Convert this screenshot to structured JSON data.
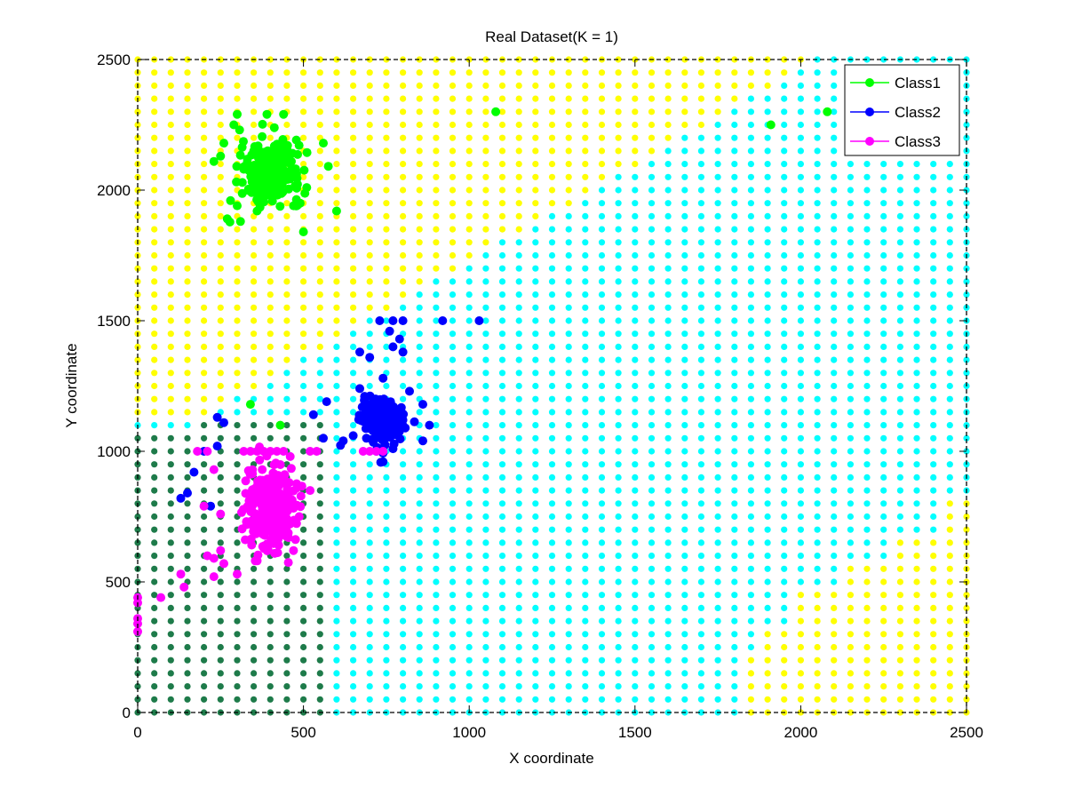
{
  "chart_data": {
    "type": "scatter",
    "title": "Real Dataset(K = 1)",
    "xlabel": "X coordinate",
    "ylabel": "Y coordinate",
    "xlim": [
      0,
      2500
    ],
    "ylim": [
      0,
      2500
    ],
    "xticks": [
      0,
      500,
      1000,
      1500,
      2000,
      2500
    ],
    "yticks": [
      0,
      500,
      1000,
      1500,
      2000,
      2500
    ],
    "grid": false,
    "legend_position": "top-right",
    "background_grid": {
      "step": 50,
      "colors": {
        "class1_region": "#ffff00",
        "class2_region": "#00ffff",
        "class3_region": "#1e7b4a"
      }
    },
    "series": [
      {
        "name": "Class1",
        "color": "#00ff00",
        "cluster": {
          "center": [
            400,
            2070
          ],
          "spread": [
            45,
            55
          ],
          "count": 260
        },
        "points": [
          [
            300,
            2290
          ],
          [
            390,
            2290
          ],
          [
            440,
            2290
          ],
          [
            290,
            2250
          ],
          [
            260,
            2180
          ],
          [
            250,
            2130
          ],
          [
            230,
            2110
          ],
          [
            320,
            2080
          ],
          [
            280,
            1960
          ],
          [
            300,
            1940
          ],
          [
            270,
            1890
          ],
          [
            310,
            1880
          ],
          [
            360,
            1920
          ],
          [
            490,
            1950
          ],
          [
            510,
            2010
          ],
          [
            470,
            1940
          ],
          [
            560,
            2180
          ],
          [
            600,
            1920
          ],
          [
            500,
            1840
          ],
          [
            450,
            2160
          ],
          [
            350,
            2150
          ],
          [
            410,
            1990
          ],
          [
            1080,
            2300
          ],
          [
            1910,
            2250
          ],
          [
            2080,
            2300
          ],
          [
            430,
            1100
          ],
          [
            340,
            1180
          ]
        ]
      },
      {
        "name": "Class2",
        "color": "#0000ff",
        "cluster": {
          "center": [
            740,
            1120
          ],
          "spread": [
            30,
            40
          ],
          "count": 260
        },
        "points": [
          [
            730,
            1500
          ],
          [
            770,
            1500
          ],
          [
            800,
            1500
          ],
          [
            920,
            1500
          ],
          [
            1030,
            1500
          ],
          [
            760,
            1460
          ],
          [
            790,
            1430
          ],
          [
            670,
            1380
          ],
          [
            700,
            1360
          ],
          [
            770,
            1400
          ],
          [
            800,
            1380
          ],
          [
            740,
            1280
          ],
          [
            670,
            1240
          ],
          [
            820,
            1230
          ],
          [
            860,
            1180
          ],
          [
            880,
            1100
          ],
          [
            860,
            1040
          ],
          [
            690,
            1050
          ],
          [
            650,
            1060
          ],
          [
            720,
            1000
          ],
          [
            770,
            1010
          ],
          [
            800,
            1120
          ],
          [
            740,
            960
          ],
          [
            570,
            1190
          ],
          [
            530,
            1140
          ],
          [
            560,
            1050
          ],
          [
            620,
            1040
          ],
          [
            260,
            1110
          ],
          [
            240,
            1130
          ],
          [
            240,
            1020
          ],
          [
            200,
            1000
          ],
          [
            170,
            920
          ],
          [
            150,
            840
          ],
          [
            130,
            820
          ],
          [
            220,
            790
          ]
        ]
      },
      {
        "name": "Class3",
        "color": "#ff00ff",
        "cluster": {
          "center": [
            400,
            790
          ],
          "spread": [
            35,
            80
          ],
          "count": 300
        },
        "points": [
          [
            320,
            1000
          ],
          [
            340,
            1000
          ],
          [
            360,
            1000
          ],
          [
            380,
            1000
          ],
          [
            400,
            1000
          ],
          [
            420,
            1000
          ],
          [
            440,
            1000
          ],
          [
            680,
            1000
          ],
          [
            700,
            1000
          ],
          [
            720,
            1000
          ],
          [
            740,
            1000
          ],
          [
            520,
            1000
          ],
          [
            540,
            1000
          ],
          [
            210,
            1000
          ],
          [
            180,
            1000
          ],
          [
            200,
            790
          ],
          [
            230,
            930
          ],
          [
            250,
            620
          ],
          [
            230,
            590
          ],
          [
            230,
            520
          ],
          [
            210,
            600
          ],
          [
            260,
            570
          ],
          [
            300,
            530
          ],
          [
            130,
            530
          ],
          [
            140,
            480
          ],
          [
            70,
            440
          ],
          [
            0,
            420
          ],
          [
            0,
            440
          ],
          [
            0,
            360
          ],
          [
            0,
            340
          ],
          [
            0,
            310
          ],
          [
            520,
            850
          ],
          [
            480,
            860
          ],
          [
            470,
            620
          ],
          [
            460,
            980
          ],
          [
            250,
            760
          ]
        ]
      }
    ]
  }
}
